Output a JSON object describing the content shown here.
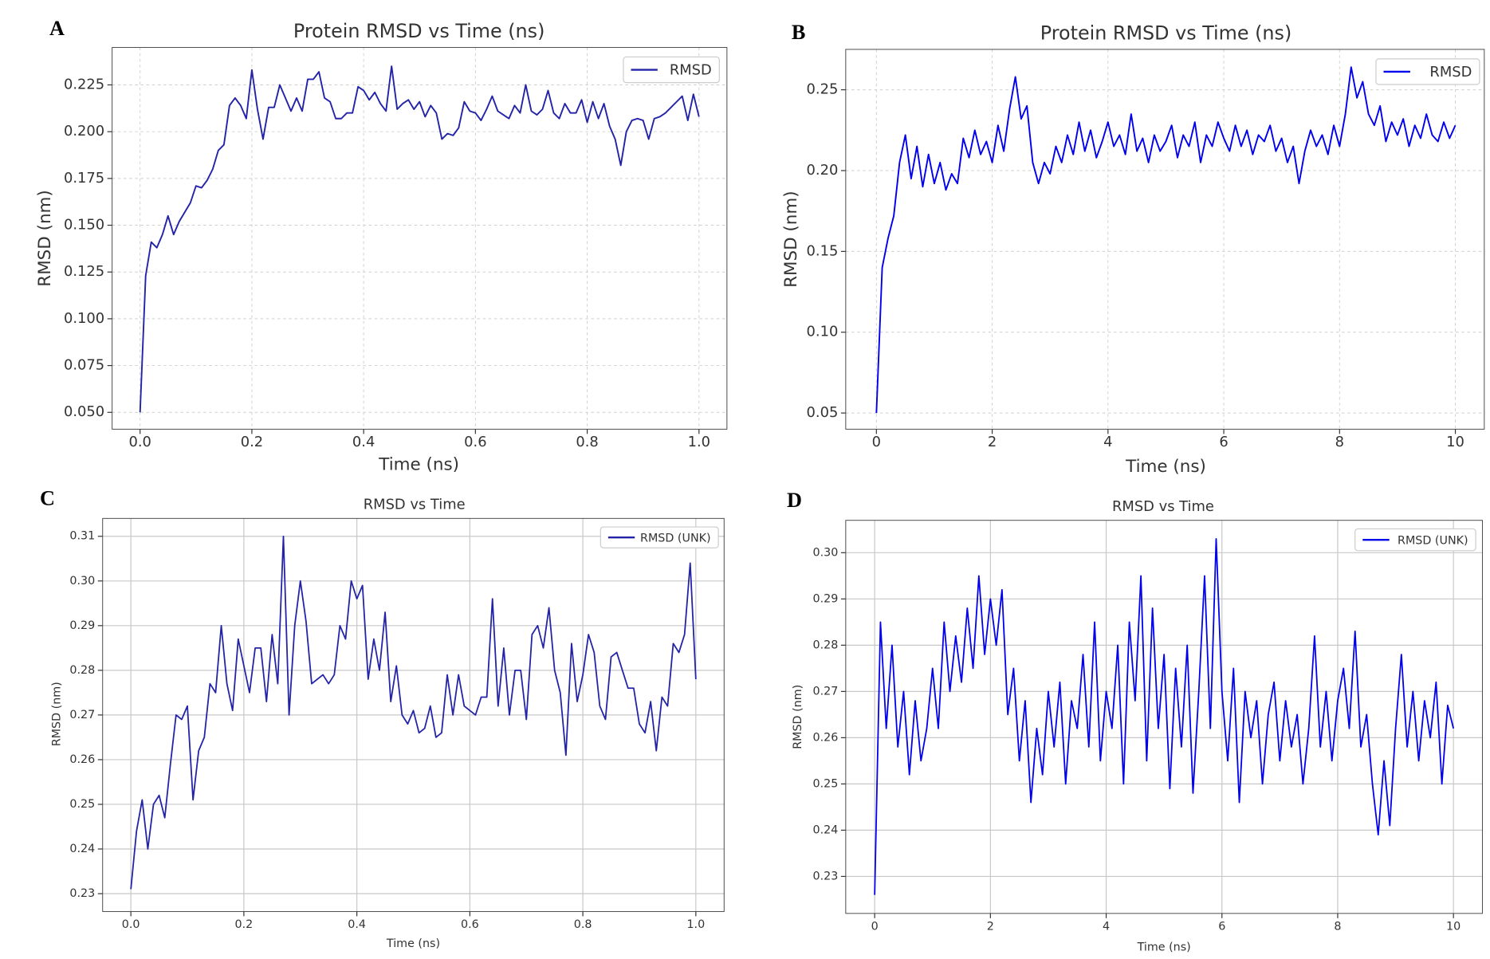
{
  "chart_data": [
    {
      "type": "line",
      "panel": "A",
      "title": "Protein RMSD vs Time (ns)",
      "xlabel": "Time (ns)",
      "ylabel": "RMSD (nm)",
      "x": [
        0,
        0.01,
        0.02,
        0.03,
        0.04,
        0.05,
        0.06,
        0.07,
        0.08,
        0.09,
        0.1,
        0.11,
        0.12,
        0.13,
        0.14,
        0.15,
        0.16,
        0.17,
        0.18,
        0.19,
        0.2,
        0.21,
        0.22,
        0.23,
        0.24,
        0.25,
        0.26,
        0.27,
        0.28,
        0.29,
        0.3,
        0.31,
        0.32,
        0.33,
        0.34,
        0.35,
        0.36,
        0.37,
        0.38,
        0.39,
        0.4,
        0.41,
        0.42,
        0.43,
        0.44,
        0.45,
        0.46,
        0.47,
        0.48,
        0.49,
        0.5,
        0.51,
        0.52,
        0.53,
        0.54,
        0.55,
        0.56,
        0.57,
        0.58,
        0.59,
        0.6,
        0.61,
        0.62,
        0.63,
        0.64,
        0.65,
        0.66,
        0.67,
        0.68,
        0.69,
        0.7,
        0.71,
        0.72,
        0.73,
        0.74,
        0.75,
        0.76,
        0.77,
        0.78,
        0.79,
        0.8,
        0.81,
        0.82,
        0.83,
        0.84,
        0.85,
        0.86,
        0.87,
        0.88,
        0.89,
        0.9,
        0.91,
        0.92,
        0.93,
        0.94,
        0.95,
        0.96,
        0.97,
        0.98,
        0.99,
        1
      ],
      "series": [
        {
          "name": "RMSD",
          "color": "#2323a8",
          "values": [
            0.05,
            0.123,
            0.141,
            0.138,
            0.145,
            0.155,
            0.145,
            0.152,
            0.157,
            0.162,
            0.171,
            0.17,
            0.174,
            0.18,
            0.19,
            0.193,
            0.214,
            0.218,
            0.214,
            0.207,
            0.233,
            0.212,
            0.196,
            0.213,
            0.213,
            0.225,
            0.218,
            0.211,
            0.218,
            0.211,
            0.228,
            0.228,
            0.232,
            0.218,
            0.216,
            0.207,
            0.207,
            0.21,
            0.21,
            0.224,
            0.222,
            0.217,
            0.221,
            0.215,
            0.211,
            0.235,
            0.212,
            0.215,
            0.217,
            0.212,
            0.216,
            0.208,
            0.214,
            0.21,
            0.196,
            0.199,
            0.198,
            0.202,
            0.216,
            0.211,
            0.21,
            0.206,
            0.212,
            0.219,
            0.211,
            0.209,
            0.207,
            0.214,
            0.21,
            0.225,
            0.211,
            0.209,
            0.212,
            0.222,
            0.21,
            0.207,
            0.215,
            0.21,
            0.21,
            0.217,
            0.205,
            0.216,
            0.207,
            0.215,
            0.203,
            0.196,
            0.182,
            0.2,
            0.206,
            0.207,
            0.206,
            0.196,
            0.207,
            0.208,
            0.21,
            0.213,
            0.216,
            0.219,
            0.206,
            0.22,
            0.208
          ]
        }
      ],
      "xlim": [
        -0.05,
        1.05
      ],
      "ylim": [
        0.041,
        0.245
      ],
      "xticks": [
        {
          "value": 0,
          "label": "0.0"
        },
        0.2,
        0.4,
        0.6,
        0.8,
        {
          "value": 1,
          "label": "1.0"
        }
      ],
      "yticks": [
        {
          "value": 0.05,
          "label": "0.050"
        },
        0.075,
        {
          "value": 0.1,
          "label": "0.100"
        },
        0.125,
        {
          "value": 0.15,
          "label": "0.150"
        },
        0.175,
        {
          "value": 0.2,
          "label": "0.200"
        },
        0.225
      ],
      "grid": true,
      "grid_style": "dashed",
      "legend": "upper right"
    },
    {
      "type": "line",
      "panel": "B",
      "title": "Protein RMSD vs Time (ns)",
      "xlabel": "Time (ns)",
      "ylabel": "RMSD (nm)",
      "x": [
        0,
        0.1,
        0.2,
        0.3,
        0.4,
        0.5,
        0.6,
        0.7,
        0.8,
        0.9,
        1,
        1.1,
        1.2,
        1.3,
        1.4,
        1.5,
        1.6,
        1.7,
        1.8,
        1.9,
        2,
        2.1,
        2.2,
        2.3,
        2.4,
        2.5,
        2.6,
        2.7,
        2.8,
        2.9,
        3,
        3.1,
        3.2,
        3.3,
        3.4,
        3.5,
        3.6,
        3.7,
        3.8,
        3.9,
        4,
        4.1,
        4.2,
        4.3,
        4.4,
        4.5,
        4.6,
        4.7,
        4.8,
        4.9,
        5,
        5.1,
        5.2,
        5.3,
        5.4,
        5.5,
        5.6,
        5.7,
        5.8,
        5.9,
        6,
        6.1,
        6.2,
        6.3,
        6.4,
        6.5,
        6.6,
        6.7,
        6.8,
        6.9,
        7,
        7.1,
        7.2,
        7.3,
        7.4,
        7.5,
        7.6,
        7.7,
        7.8,
        7.9,
        8,
        8.1,
        8.2,
        8.3,
        8.4,
        8.5,
        8.6,
        8.7,
        8.8,
        8.9,
        9,
        9.1,
        9.2,
        9.3,
        9.4,
        9.5,
        9.6,
        9.7,
        9.8,
        9.9,
        10
      ],
      "series": [
        {
          "name": "RMSD",
          "color": "#0000ee",
          "values": [
            0.05,
            0.14,
            0.158,
            0.172,
            0.205,
            0.222,
            0.195,
            0.215,
            0.19,
            0.21,
            0.192,
            0.205,
            0.188,
            0.198,
            0.192,
            0.22,
            0.208,
            0.225,
            0.21,
            0.218,
            0.205,
            0.228,
            0.212,
            0.238,
            0.258,
            0.232,
            0.24,
            0.205,
            0.192,
            0.205,
            0.198,
            0.215,
            0.205,
            0.222,
            0.21,
            0.23,
            0.212,
            0.225,
            0.208,
            0.218,
            0.23,
            0.215,
            0.222,
            0.21,
            0.235,
            0.212,
            0.22,
            0.205,
            0.222,
            0.212,
            0.218,
            0.228,
            0.208,
            0.222,
            0.215,
            0.23,
            0.205,
            0.222,
            0.215,
            0.23,
            0.22,
            0.212,
            0.228,
            0.215,
            0.225,
            0.21,
            0.222,
            0.218,
            0.228,
            0.212,
            0.22,
            0.205,
            0.215,
            0.192,
            0.212,
            0.225,
            0.215,
            0.222,
            0.21,
            0.228,
            0.215,
            0.235,
            0.264,
            0.245,
            0.255,
            0.235,
            0.228,
            0.24,
            0.218,
            0.23,
            0.222,
            0.232,
            0.215,
            0.228,
            0.22,
            0.235,
            0.222,
            0.218,
            0.23,
            0.22,
            0.228
          ]
        }
      ],
      "xlim": [
        -0.53,
        10.5
      ],
      "ylim": [
        0.04,
        0.275
      ],
      "xticks": [
        0,
        2,
        4,
        6,
        8,
        10
      ],
      "yticks": [
        0.05,
        {
          "value": 0.1,
          "label": "0.10"
        },
        0.15,
        {
          "value": 0.2,
          "label": "0.20"
        },
        0.25
      ],
      "grid": true,
      "grid_style": "dashed",
      "legend": "upper right"
    },
    {
      "type": "line",
      "panel": "C",
      "title": "RMSD vs Time",
      "xlabel": "Time (ns)",
      "ylabel": "RMSD (nm)",
      "x": [
        0,
        0.01,
        0.02,
        0.03,
        0.04,
        0.05,
        0.06,
        0.07,
        0.08,
        0.09,
        0.1,
        0.11,
        0.12,
        0.13,
        0.14,
        0.15,
        0.16,
        0.17,
        0.18,
        0.19,
        0.2,
        0.21,
        0.22,
        0.23,
        0.24,
        0.25,
        0.26,
        0.27,
        0.28,
        0.29,
        0.3,
        0.31,
        0.32,
        0.33,
        0.34,
        0.35,
        0.36,
        0.37,
        0.38,
        0.39,
        0.4,
        0.41,
        0.42,
        0.43,
        0.44,
        0.45,
        0.46,
        0.47,
        0.48,
        0.49,
        0.5,
        0.51,
        0.52,
        0.53,
        0.54,
        0.55,
        0.56,
        0.57,
        0.58,
        0.59,
        0.6,
        0.61,
        0.62,
        0.63,
        0.64,
        0.65,
        0.66,
        0.67,
        0.68,
        0.69,
        0.7,
        0.71,
        0.72,
        0.73,
        0.74,
        0.75,
        0.76,
        0.77,
        0.78,
        0.79,
        0.8,
        0.81,
        0.82,
        0.83,
        0.84,
        0.85,
        0.86,
        0.87,
        0.88,
        0.89,
        0.9,
        0.91,
        0.92,
        0.93,
        0.94,
        0.95,
        0.96,
        0.97,
        0.98,
        0.99,
        1
      ],
      "series": [
        {
          "name": "RMSD (UNK)",
          "color": "#2323a8",
          "values": [
            0.231,
            0.244,
            0.251,
            0.24,
            0.25,
            0.252,
            0.247,
            0.259,
            0.27,
            0.269,
            0.272,
            0.251,
            0.262,
            0.265,
            0.277,
            0.275,
            0.29,
            0.277,
            0.271,
            0.287,
            0.281,
            0.275,
            0.285,
            0.285,
            0.273,
            0.288,
            0.277,
            0.31,
            0.27,
            0.29,
            0.3,
            0.291,
            0.277,
            0.278,
            0.279,
            0.277,
            0.279,
            0.29,
            0.287,
            0.3,
            0.296,
            0.299,
            0.278,
            0.287,
            0.28,
            0.293,
            0.273,
            0.281,
            0.27,
            0.268,
            0.271,
            0.266,
            0.267,
            0.272,
            0.265,
            0.266,
            0.279,
            0.27,
            0.279,
            0.272,
            0.271,
            0.27,
            0.274,
            0.274,
            0.296,
            0.272,
            0.285,
            0.27,
            0.28,
            0.28,
            0.269,
            0.288,
            0.29,
            0.285,
            0.294,
            0.28,
            0.275,
            0.261,
            0.286,
            0.273,
            0.279,
            0.288,
            0.284,
            0.272,
            0.269,
            0.283,
            0.284,
            0.28,
            0.276,
            0.276,
            0.268,
            0.266,
            0.273,
            0.262,
            0.274,
            0.272,
            0.286,
            0.284,
            0.288,
            0.304,
            0.278
          ]
        }
      ],
      "xlim": [
        -0.05,
        1.05
      ],
      "ylim": [
        0.226,
        0.314
      ],
      "xticks": [
        {
          "value": 0,
          "label": "0.0"
        },
        0.2,
        0.4,
        0.6,
        0.8,
        {
          "value": 1,
          "label": "1.0"
        }
      ],
      "yticks": [
        0.23,
        0.24,
        0.25,
        0.26,
        0.27,
        0.28,
        0.29,
        {
          "value": 0.3,
          "label": "0.30"
        },
        0.31
      ],
      "grid": true,
      "grid_style": "solid",
      "legend": "upper right"
    },
    {
      "type": "line",
      "panel": "D",
      "title": "RMSD vs Time",
      "xlabel": "Time (ns)",
      "ylabel": "RMSD (nm)",
      "x": [
        0,
        0.1,
        0.2,
        0.3,
        0.4,
        0.5,
        0.6,
        0.7,
        0.8,
        0.9,
        1,
        1.1,
        1.2,
        1.3,
        1.4,
        1.5,
        1.6,
        1.7,
        1.8,
        1.9,
        2,
        2.1,
        2.2,
        2.3,
        2.4,
        2.5,
        2.6,
        2.7,
        2.8,
        2.9,
        3,
        3.1,
        3.2,
        3.3,
        3.4,
        3.5,
        3.6,
        3.7,
        3.8,
        3.9,
        4,
        4.1,
        4.2,
        4.3,
        4.4,
        4.5,
        4.6,
        4.7,
        4.8,
        4.9,
        5,
        5.1,
        5.2,
        5.3,
        5.4,
        5.5,
        5.6,
        5.7,
        5.8,
        5.9,
        6,
        6.1,
        6.2,
        6.3,
        6.4,
        6.5,
        6.6,
        6.7,
        6.8,
        6.9,
        7,
        7.1,
        7.2,
        7.3,
        7.4,
        7.5,
        7.6,
        7.7,
        7.8,
        7.9,
        8,
        8.1,
        8.2,
        8.3,
        8.4,
        8.5,
        8.6,
        8.7,
        8.8,
        8.9,
        9,
        9.1,
        9.2,
        9.3,
        9.4,
        9.5,
        9.6,
        9.7,
        9.8,
        9.9,
        10
      ],
      "series": [
        {
          "name": "RMSD (UNK)",
          "color": "#0000ee",
          "values": [
            0.226,
            0.285,
            0.262,
            0.28,
            0.258,
            0.27,
            0.252,
            0.268,
            0.255,
            0.262,
            0.275,
            0.262,
            0.285,
            0.27,
            0.282,
            0.272,
            0.288,
            0.275,
            0.295,
            0.278,
            0.29,
            0.28,
            0.292,
            0.265,
            0.275,
            0.255,
            0.268,
            0.246,
            0.262,
            0.252,
            0.27,
            0.258,
            0.272,
            0.25,
            0.268,
            0.262,
            0.278,
            0.258,
            0.285,
            0.255,
            0.27,
            0.262,
            0.28,
            0.25,
            0.285,
            0.268,
            0.295,
            0.255,
            0.288,
            0.262,
            0.278,
            0.249,
            0.275,
            0.258,
            0.28,
            0.248,
            0.27,
            0.295,
            0.262,
            0.303,
            0.27,
            0.255,
            0.275,
            0.246,
            0.27,
            0.26,
            0.268,
            0.25,
            0.265,
            0.272,
            0.255,
            0.268,
            0.258,
            0.265,
            0.25,
            0.262,
            0.282,
            0.258,
            0.27,
            0.255,
            0.268,
            0.275,
            0.262,
            0.283,
            0.258,
            0.265,
            0.25,
            0.239,
            0.255,
            0.241,
            0.262,
            0.278,
            0.258,
            0.27,
            0.255,
            0.268,
            0.26,
            0.272,
            0.25,
            0.267,
            0.262
          ]
        }
      ],
      "xlim": [
        -0.5,
        10.5
      ],
      "ylim": [
        0.222,
        0.307
      ],
      "xticks": [
        0,
        2,
        4,
        6,
        8,
        10
      ],
      "yticks": [
        0.23,
        0.24,
        0.25,
        0.26,
        0.27,
        0.28,
        0.29,
        {
          "value": 0.3,
          "label": "0.30"
        }
      ],
      "grid": true,
      "grid_style": "solid",
      "legend": "upper right"
    }
  ]
}
